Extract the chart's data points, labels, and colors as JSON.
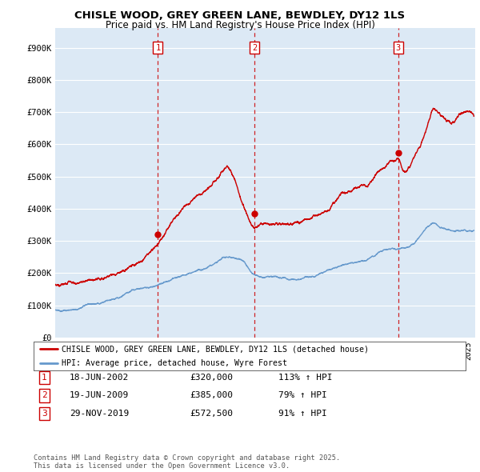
{
  "title": "CHISLE WOOD, GREY GREEN LANE, BEWDLEY, DY12 1LS",
  "subtitle": "Price paid vs. HM Land Registry's House Price Index (HPI)",
  "ylabel_ticks": [
    "£0",
    "£100K",
    "£200K",
    "£300K",
    "£400K",
    "£500K",
    "£600K",
    "£700K",
    "£800K",
    "£900K"
  ],
  "ytick_values": [
    0,
    100000,
    200000,
    300000,
    400000,
    500000,
    600000,
    700000,
    800000,
    900000
  ],
  "ylim": [
    0,
    960000
  ],
  "xlim_start": 1995.0,
  "xlim_end": 2025.5,
  "property_color": "#cc0000",
  "hpi_color": "#6699cc",
  "plot_bg_color": "#dce9f5",
  "grid_color": "#ffffff",
  "legend_label_property": "CHISLE WOOD, GREY GREEN LANE, BEWDLEY, DY12 1LS (detached house)",
  "legend_label_hpi": "HPI: Average price, detached house, Wyre Forest",
  "sale1_x": 2002.46,
  "sale1_y": 320000,
  "sale2_x": 2009.46,
  "sale2_y": 385000,
  "sale3_x": 2019.92,
  "sale3_y": 572500,
  "table_rows": [
    [
      "1",
      "18-JUN-2002",
      "£320,000",
      "113% ↑ HPI"
    ],
    [
      "2",
      "19-JUN-2009",
      "£385,000",
      "79% ↑ HPI"
    ],
    [
      "3",
      "29-NOV-2019",
      "£572,500",
      "91% ↑ HPI"
    ]
  ],
  "footer": "Contains HM Land Registry data © Crown copyright and database right 2025.\nThis data is licensed under the Open Government Licence v3.0."
}
